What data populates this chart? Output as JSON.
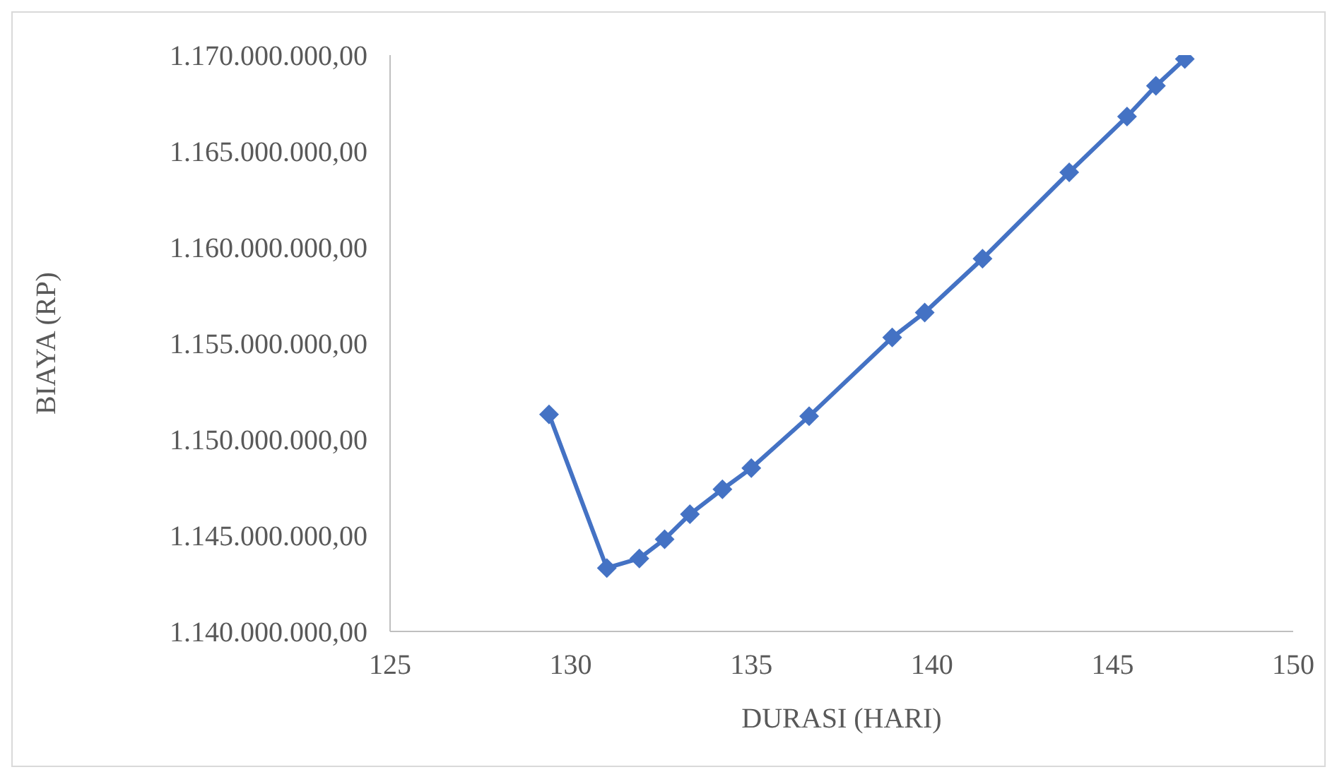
{
  "chart_data": {
    "type": "line",
    "xlabel": "DURASI  (HARI)",
    "ylabel": "BIAYA  (RP)",
    "x": [
      129.4,
      131.0,
      131.9,
      132.6,
      133.3,
      134.2,
      135.0,
      136.6,
      138.9,
      139.8,
      141.4,
      143.8,
      145.4,
      146.2,
      147.0
    ],
    "series": [
      {
        "color": "#4472c4",
        "values": [
          1151300000,
          1143300000,
          1143800000,
          1144800000,
          1146100000,
          1147400000,
          1148500000,
          1151200000,
          1155300000,
          1156600000,
          1159400000,
          1163900000,
          1166800000,
          1168400000,
          1169800000
        ]
      }
    ],
    "xlim": [
      125,
      150
    ],
    "xticks": [
      125,
      130,
      135,
      140,
      145,
      150
    ],
    "ylim": [
      1140000000,
      1170000000
    ],
    "yticks": [
      {
        "value": 1140000000,
        "label": "1.140.000.000,00"
      },
      {
        "value": 1145000000,
        "label": "1.145.000.000,00"
      },
      {
        "value": 1150000000,
        "label": "1.150.000.000,00"
      },
      {
        "value": 1155000000,
        "label": "1.155.000.000,00"
      },
      {
        "value": 1160000000,
        "label": "1.160.000.000,00"
      },
      {
        "value": 1165000000,
        "label": "1.165.000.000,00"
      },
      {
        "value": 1170000000,
        "label": "1.170.000.000,00"
      }
    ],
    "grid": false,
    "legend": false,
    "marker": "diamond",
    "line_style": "solid"
  }
}
